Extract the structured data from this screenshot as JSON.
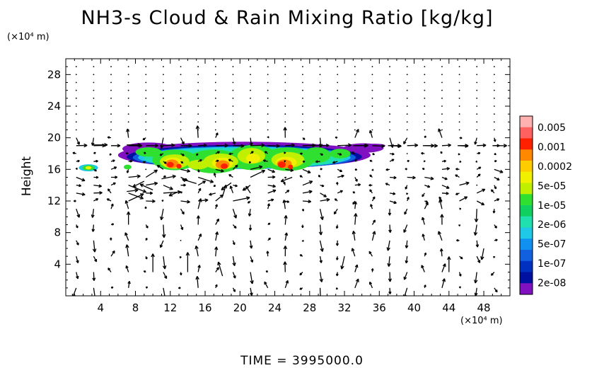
{
  "chart_data": {
    "type": "heatmap",
    "title": "NH3-s Cloud & Rain Mixing Ratio [kg/kg]",
    "ylabel": "Height",
    "x_unit": "(×10⁴ m)",
    "y_unit": "(×10⁴ m)",
    "footer": "TIME = 3995000.0",
    "xlim": [
      0,
      51
    ],
    "ylim": [
      0,
      30
    ],
    "xticks": [
      "4",
      "8",
      "12",
      "16",
      "20",
      "24",
      "28",
      "32",
      "36",
      "40",
      "44",
      "48"
    ],
    "xtick_values": [
      4,
      8,
      12,
      16,
      20,
      24,
      28,
      32,
      36,
      40,
      44,
      48
    ],
    "yticks": [
      "4",
      "8",
      "12",
      "16",
      "20",
      "24",
      "28"
    ],
    "ytick_values": [
      4,
      8,
      12,
      16,
      20,
      24,
      28
    ],
    "colorbar": {
      "labels": [
        "0.005",
        "0.001",
        "0.0002",
        "5e-05",
        "1e-05",
        "2e-06",
        "5e-07",
        "1e-07",
        "2e-08"
      ],
      "colors": [
        "#ffb0b0",
        "#ff6060",
        "#ff2000",
        "#ff8800",
        "#ffcc00",
        "#f0f000",
        "#c0f000",
        "#30e030",
        "#10d060",
        "#20e0b0",
        "#20c8e8",
        "#1090f0",
        "#1060e0",
        "#0030c0",
        "#0010a0",
        "#8010c0"
      ]
    },
    "cloud_regions": [
      {
        "x": [
          2.0,
          3.5
        ],
        "y": [
          15.8,
          16.6
        ],
        "level": "5e-05"
      },
      {
        "x": [
          6.5,
          35.0
        ],
        "y": [
          15.7,
          19.5
        ],
        "level": "2e-08 to 0.001"
      },
      {
        "x": [
          11.5,
          14.0
        ],
        "y": [
          15.8,
          17.8
        ],
        "level": "0.001"
      },
      {
        "x": [
          17.5,
          19.5
        ],
        "y": [
          15.8,
          17.5
        ],
        "level": "0.001"
      },
      {
        "x": [
          24.0,
          27.0
        ],
        "y": [
          15.8,
          17.5
        ],
        "level": "0.001"
      },
      {
        "x": [
          33.0,
          35.5
        ],
        "y": [
          18.2,
          19.3
        ],
        "level": "2e-08"
      }
    ],
    "wind_vectors": "quiver field of wind arrows across the domain"
  }
}
